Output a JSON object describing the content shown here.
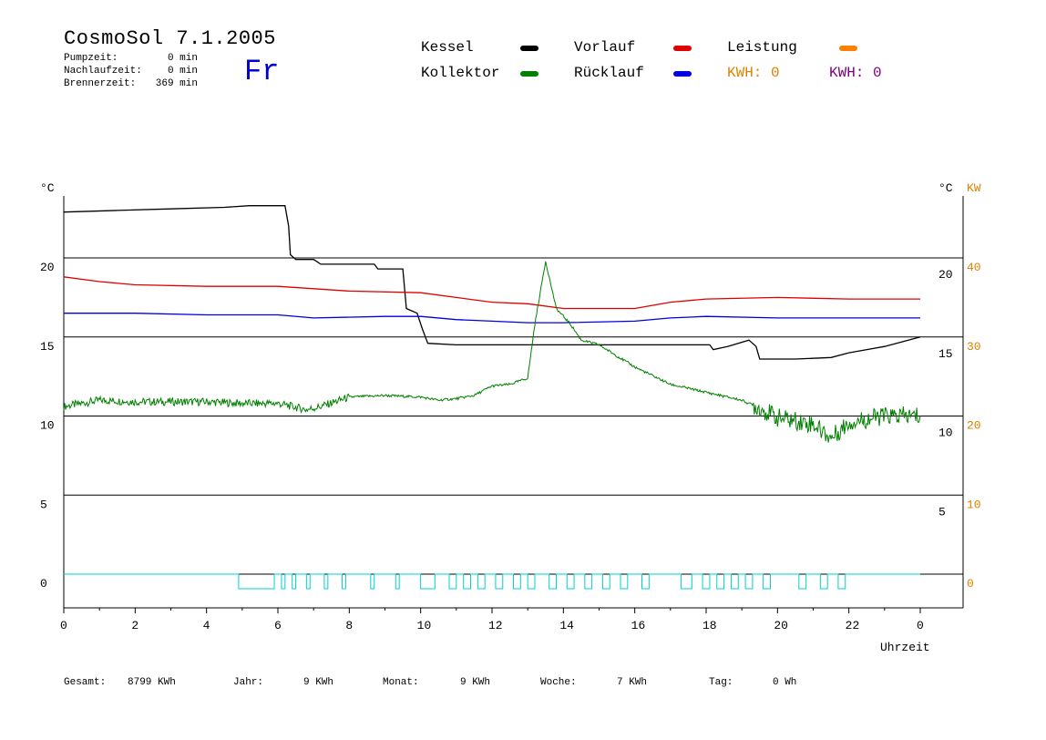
{
  "header": {
    "title": "CosmoSol 7.1.2005",
    "weekday": "Fr",
    "info": [
      {
        "label": "Pumpzeit:",
        "value": "0 min"
      },
      {
        "label": "Nachlaufzeit:",
        "value": "0 min"
      },
      {
        "label": "Brennerzeit:",
        "value": "369 min"
      }
    ]
  },
  "legend": {
    "kessel": "Kessel",
    "kollektor": "Kollektor",
    "vorlauf": "Vorlauf",
    "ruecklauf": "Rücklauf",
    "leistung": "Leistung",
    "kwh1": "KWH: 0",
    "kwh2": "KWH: 0"
  },
  "colors": {
    "kessel": "#000000",
    "kollektor": "#008000",
    "vorlauf": "#e00000",
    "ruecklauf": "#0000e0",
    "leistung": "#ff8000",
    "kwh1": "#e08000",
    "kwh2": "#800080",
    "pump": "#00d0d0",
    "weekday": "#0000cc"
  },
  "footer": {
    "gesamt_label": "Gesamt:",
    "gesamt_value": "8799 KWh",
    "jahr_label": "Jahr:",
    "jahr_value": "9 KWh",
    "monat_label": "Monat:",
    "monat_value": "9 KWh",
    "woche_label": "Woche:",
    "woche_value": "7 KWh",
    "tag_label": "Tag:",
    "tag_value": "0 Wh"
  },
  "chart_data": {
    "type": "line",
    "xlabel": "Uhrzeit",
    "ylabel_left": "°C",
    "ylabel_right_c": "°C",
    "ylabel_right_kw": "KW",
    "xlim": [
      0,
      24
    ],
    "ylim": [
      -2,
      25
    ],
    "grid": true,
    "x_ticks": [
      "0",
      "2",
      "4",
      "6",
      "8",
      "10",
      "12",
      "14",
      "16",
      "18",
      "20",
      "22",
      "0"
    ],
    "y_ticks_left": [
      "0",
      "5",
      "10",
      "15",
      "20"
    ],
    "y_ticks_right_c": [
      "5",
      "10",
      "15",
      "20"
    ],
    "y_ticks_right_kw": [
      "0",
      "10",
      "20",
      "30",
      "40"
    ],
    "series": [
      {
        "name": "Kessel",
        "color": "#000000",
        "points": [
          [
            0,
            22.9
          ],
          [
            1.5,
            23.0
          ],
          [
            3,
            23.1
          ],
          [
            4.5,
            23.2
          ],
          [
            5.2,
            23.3
          ],
          [
            6.2,
            23.3
          ],
          [
            6.3,
            22.0
          ],
          [
            6.35,
            20.2
          ],
          [
            6.5,
            19.9
          ],
          [
            7,
            19.9
          ],
          [
            7.2,
            19.6
          ],
          [
            8.7,
            19.6
          ],
          [
            8.8,
            19.3
          ],
          [
            9.5,
            19.3
          ],
          [
            9.6,
            16.8
          ],
          [
            9.9,
            16.5
          ],
          [
            10.05,
            15.5
          ],
          [
            10.2,
            14.6
          ],
          [
            11,
            14.5
          ],
          [
            16,
            14.5
          ],
          [
            18.1,
            14.5
          ],
          [
            18.2,
            14.2
          ],
          [
            18.6,
            14.4
          ],
          [
            19.2,
            14.8
          ],
          [
            19.4,
            14.4
          ],
          [
            19.5,
            13.6
          ],
          [
            20.5,
            13.6
          ],
          [
            21.5,
            13.7
          ],
          [
            22,
            14.0
          ],
          [
            23,
            14.4
          ],
          [
            24,
            15.0
          ]
        ]
      },
      {
        "name": "Vorlauf",
        "color": "#e00000",
        "points": [
          [
            0,
            18.8
          ],
          [
            1,
            18.5
          ],
          [
            2,
            18.3
          ],
          [
            4,
            18.2
          ],
          [
            6,
            18.2
          ],
          [
            8,
            17.9
          ],
          [
            10,
            17.8
          ],
          [
            11,
            17.5
          ],
          [
            12,
            17.2
          ],
          [
            13,
            17.1
          ],
          [
            14,
            16.8
          ],
          [
            16,
            16.8
          ],
          [
            17,
            17.2
          ],
          [
            18,
            17.4
          ],
          [
            20,
            17.5
          ],
          [
            22,
            17.4
          ],
          [
            24,
            17.4
          ]
        ]
      },
      {
        "name": "Rücklauf",
        "color": "#0000e0",
        "points": [
          [
            0,
            16.5
          ],
          [
            2,
            16.5
          ],
          [
            4,
            16.4
          ],
          [
            6,
            16.4
          ],
          [
            7,
            16.2
          ],
          [
            9,
            16.3
          ],
          [
            10,
            16.3
          ],
          [
            11,
            16.1
          ],
          [
            12,
            16.0
          ],
          [
            13,
            15.9
          ],
          [
            14,
            15.9
          ],
          [
            16,
            16.0
          ],
          [
            17,
            16.2
          ],
          [
            18,
            16.3
          ],
          [
            20,
            16.2
          ],
          [
            22,
            16.2
          ],
          [
            24,
            16.2
          ]
        ]
      },
      {
        "name": "Kollektor",
        "color": "#008000",
        "points": [
          [
            0,
            10.6
          ],
          [
            0.5,
            10.8
          ],
          [
            1,
            11.0
          ],
          [
            2,
            10.9
          ],
          [
            3,
            10.9
          ],
          [
            4,
            10.9
          ],
          [
            5,
            10.8
          ],
          [
            6,
            10.8
          ],
          [
            6.8,
            10.4
          ],
          [
            7.2,
            10.6
          ],
          [
            8,
            11.2
          ],
          [
            9,
            11.3
          ],
          [
            10,
            11.2
          ],
          [
            10.5,
            11.0
          ],
          [
            11,
            11.1
          ],
          [
            11.5,
            11.3
          ],
          [
            12,
            11.9
          ],
          [
            12.5,
            12.0
          ],
          [
            13,
            12.4
          ],
          [
            13.2,
            15.8
          ],
          [
            13.5,
            19.8
          ],
          [
            13.8,
            16.8
          ],
          [
            14.2,
            15.8
          ],
          [
            14.5,
            14.8
          ],
          [
            15,
            14.5
          ],
          [
            15.5,
            13.8
          ],
          [
            16,
            13.1
          ],
          [
            17,
            12.0
          ],
          [
            18,
            11.5
          ],
          [
            19,
            11.0
          ],
          [
            19.5,
            10.5
          ],
          [
            20,
            9.9
          ],
          [
            21,
            9.5
          ],
          [
            21.5,
            8.6
          ],
          [
            22,
            9.6
          ],
          [
            23,
            10.0
          ],
          [
            24,
            10.0
          ]
        ]
      },
      {
        "name": "Leistung",
        "color": "#ff8000",
        "points": []
      }
    ],
    "pump_pulses": [
      [
        4.9,
        5.9
      ],
      [
        6.1,
        6.2
      ],
      [
        6.4,
        6.5
      ],
      [
        6.8,
        6.9
      ],
      [
        7.3,
        7.4
      ],
      [
        7.8,
        7.9
      ],
      [
        8.6,
        8.7
      ],
      [
        9.3,
        9.4
      ],
      [
        10.0,
        10.4
      ],
      [
        10.8,
        11.0
      ],
      [
        11.2,
        11.4
      ],
      [
        11.6,
        11.8
      ],
      [
        12.1,
        12.3
      ],
      [
        12.6,
        12.8
      ],
      [
        13.0,
        13.2
      ],
      [
        13.6,
        13.8
      ],
      [
        14.1,
        14.3
      ],
      [
        14.6,
        14.8
      ],
      [
        15.1,
        15.3
      ],
      [
        15.6,
        15.8
      ],
      [
        16.2,
        16.4
      ],
      [
        17.3,
        17.6
      ],
      [
        17.9,
        18.1
      ],
      [
        18.3,
        18.5
      ],
      [
        18.7,
        18.9
      ],
      [
        19.1,
        19.3
      ],
      [
        19.6,
        19.8
      ],
      [
        20.6,
        20.8
      ],
      [
        21.2,
        21.4
      ],
      [
        21.7,
        21.9
      ]
    ]
  }
}
